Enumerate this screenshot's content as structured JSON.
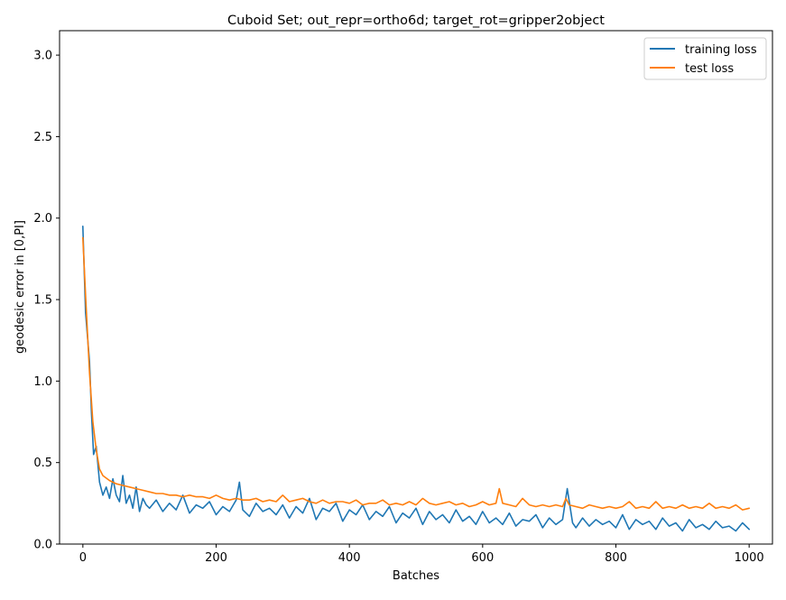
{
  "chart_data": {
    "type": "line",
    "title": "Cuboid Set; out_repr=ortho6d; target_rot=gripper2object",
    "xlabel": "Batches",
    "ylabel": "geodesic error in [0,PI]",
    "xlim": [
      -35,
      1035
    ],
    "ylim": [
      0.0,
      3.15
    ],
    "xticks": [
      0,
      200,
      400,
      600,
      800,
      1000
    ],
    "yticks": [
      0.0,
      0.5,
      1.0,
      1.5,
      2.0,
      2.5,
      3.0
    ],
    "xtick_labels": [
      "0",
      "200",
      "400",
      "600",
      "800",
      "1000"
    ],
    "ytick_labels": [
      "0.0",
      "0.5",
      "1.0",
      "1.5",
      "2.0",
      "2.5",
      "3.0"
    ],
    "grid": false,
    "legend_position": "top-right",
    "series": [
      {
        "name": "training loss",
        "color": "#1f77b4",
        "x": [
          0,
          4,
          7,
          10,
          13,
          16,
          20,
          25,
          30,
          35,
          40,
          45,
          50,
          55,
          60,
          65,
          70,
          75,
          80,
          85,
          90,
          95,
          100,
          110,
          120,
          130,
          140,
          150,
          160,
          170,
          180,
          190,
          200,
          210,
          220,
          230,
          235,
          240,
          250,
          260,
          270,
          280,
          290,
          300,
          310,
          320,
          330,
          340,
          350,
          360,
          370,
          380,
          390,
          400,
          410,
          420,
          430,
          440,
          450,
          460,
          470,
          480,
          490,
          500,
          510,
          520,
          530,
          540,
          550,
          560,
          570,
          580,
          590,
          600,
          610,
          620,
          630,
          640,
          650,
          660,
          670,
          680,
          690,
          700,
          710,
          720,
          727,
          735,
          740,
          750,
          760,
          770,
          780,
          790,
          800,
          810,
          820,
          830,
          840,
          850,
          860,
          870,
          880,
          890,
          900,
          910,
          920,
          930,
          940,
          950,
          960,
          970,
          980,
          990,
          1000
        ],
        "y": [
          1.95,
          1.42,
          1.27,
          1.12,
          0.8,
          0.55,
          0.6,
          0.38,
          0.3,
          0.35,
          0.28,
          0.4,
          0.3,
          0.26,
          0.42,
          0.25,
          0.3,
          0.22,
          0.35,
          0.2,
          0.28,
          0.24,
          0.22,
          0.27,
          0.2,
          0.25,
          0.21,
          0.3,
          0.19,
          0.24,
          0.22,
          0.26,
          0.18,
          0.23,
          0.2,
          0.27,
          0.38,
          0.21,
          0.17,
          0.25,
          0.2,
          0.22,
          0.18,
          0.24,
          0.16,
          0.23,
          0.19,
          0.28,
          0.15,
          0.22,
          0.2,
          0.25,
          0.14,
          0.21,
          0.18,
          0.24,
          0.15,
          0.2,
          0.17,
          0.23,
          0.13,
          0.19,
          0.16,
          0.22,
          0.12,
          0.2,
          0.15,
          0.18,
          0.13,
          0.21,
          0.14,
          0.17,
          0.12,
          0.2,
          0.13,
          0.16,
          0.12,
          0.19,
          0.11,
          0.15,
          0.14,
          0.18,
          0.1,
          0.16,
          0.12,
          0.15,
          0.34,
          0.13,
          0.1,
          0.16,
          0.11,
          0.15,
          0.12,
          0.14,
          0.1,
          0.18,
          0.09,
          0.15,
          0.12,
          0.14,
          0.09,
          0.16,
          0.11,
          0.13,
          0.08,
          0.15,
          0.1,
          0.12,
          0.09,
          0.14,
          0.1,
          0.11,
          0.08,
          0.13,
          0.09
        ]
      },
      {
        "name": "test loss",
        "color": "#ff7f0e",
        "x": [
          0,
          5,
          10,
          15,
          20,
          25,
          30,
          40,
          50,
          60,
          70,
          80,
          90,
          100,
          110,
          120,
          130,
          140,
          150,
          160,
          170,
          180,
          190,
          200,
          210,
          220,
          230,
          240,
          250,
          260,
          270,
          280,
          290,
          300,
          310,
          320,
          330,
          340,
          350,
          360,
          370,
          380,
          390,
          400,
          410,
          420,
          430,
          440,
          450,
          460,
          470,
          480,
          490,
          500,
          510,
          520,
          530,
          540,
          550,
          560,
          570,
          580,
          590,
          600,
          610,
          620,
          625,
          630,
          640,
          650,
          660,
          670,
          680,
          690,
          700,
          710,
          720,
          725,
          730,
          740,
          750,
          760,
          770,
          780,
          790,
          800,
          810,
          820,
          830,
          840,
          850,
          860,
          870,
          880,
          890,
          900,
          910,
          920,
          930,
          940,
          950,
          960,
          970,
          980,
          990,
          1000
        ],
        "y": [
          1.88,
          1.45,
          1.05,
          0.75,
          0.58,
          0.46,
          0.42,
          0.39,
          0.37,
          0.36,
          0.35,
          0.34,
          0.33,
          0.32,
          0.31,
          0.31,
          0.3,
          0.3,
          0.29,
          0.3,
          0.29,
          0.29,
          0.28,
          0.3,
          0.28,
          0.27,
          0.28,
          0.27,
          0.27,
          0.28,
          0.26,
          0.27,
          0.26,
          0.3,
          0.26,
          0.27,
          0.28,
          0.26,
          0.25,
          0.27,
          0.25,
          0.26,
          0.26,
          0.25,
          0.27,
          0.24,
          0.25,
          0.25,
          0.27,
          0.24,
          0.25,
          0.24,
          0.26,
          0.24,
          0.28,
          0.25,
          0.24,
          0.25,
          0.26,
          0.24,
          0.25,
          0.23,
          0.24,
          0.26,
          0.24,
          0.25,
          0.34,
          0.25,
          0.24,
          0.23,
          0.28,
          0.24,
          0.23,
          0.24,
          0.23,
          0.24,
          0.23,
          0.28,
          0.24,
          0.23,
          0.22,
          0.24,
          0.23,
          0.22,
          0.23,
          0.22,
          0.23,
          0.26,
          0.22,
          0.23,
          0.22,
          0.26,
          0.22,
          0.23,
          0.22,
          0.24,
          0.22,
          0.23,
          0.22,
          0.25,
          0.22,
          0.23,
          0.22,
          0.24,
          0.21,
          0.22
        ]
      }
    ]
  }
}
